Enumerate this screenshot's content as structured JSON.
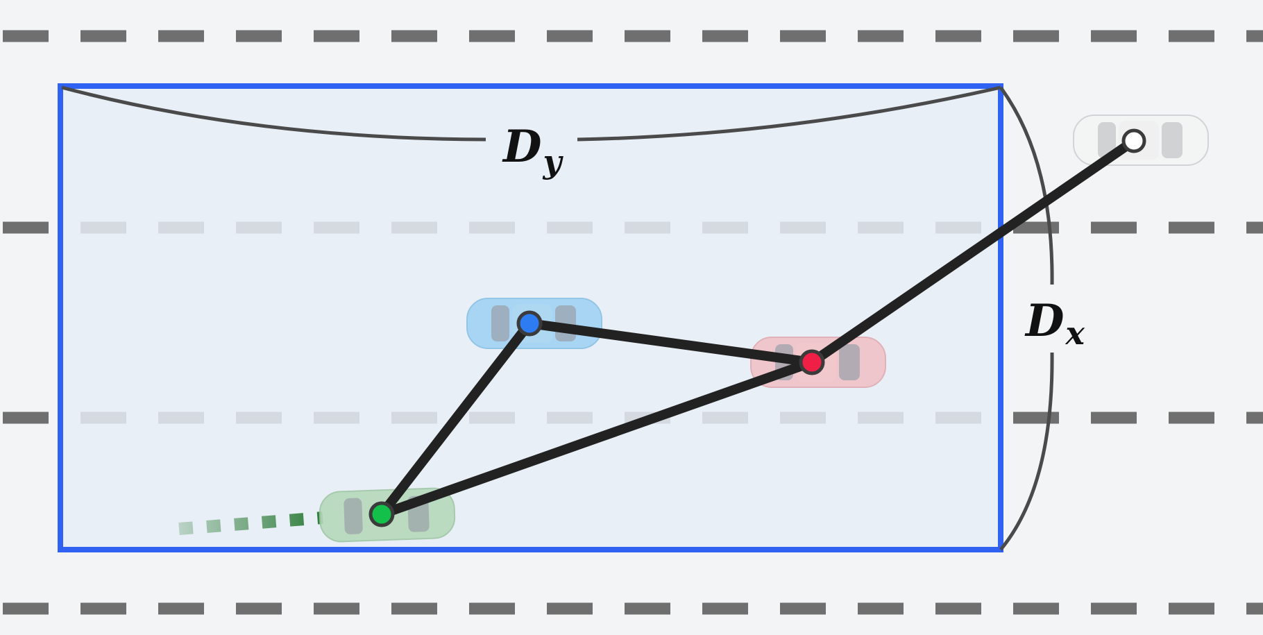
{
  "labels": {
    "dy_main": "D",
    "dy_sub": "y",
    "dx_main": "D",
    "dx_sub": "x"
  },
  "colors": {
    "background": "#f2f4f6",
    "bounding_box": "#2f62f3",
    "bounding_fill": "#e8edf6",
    "edges": "#222222",
    "lane_markings": "#6f6f6f"
  },
  "vehicles": [
    {
      "id": "ego-green",
      "node_color": "#12c04a",
      "body_color": "#b6d9bb",
      "trail_color": "#2e7d3a"
    },
    {
      "id": "blue",
      "node_color": "#2e7cf2",
      "body_color": "#a5d4f3",
      "trail_color": "#1565c0"
    },
    {
      "id": "red",
      "node_color": "#ef1f46",
      "body_color": "#f0c2c7",
      "trail_color": "#e53945"
    },
    {
      "id": "white",
      "node_color": "#ffffff",
      "body_color": "#f2f2f2",
      "trail_color": "#cfd3d8"
    }
  ]
}
